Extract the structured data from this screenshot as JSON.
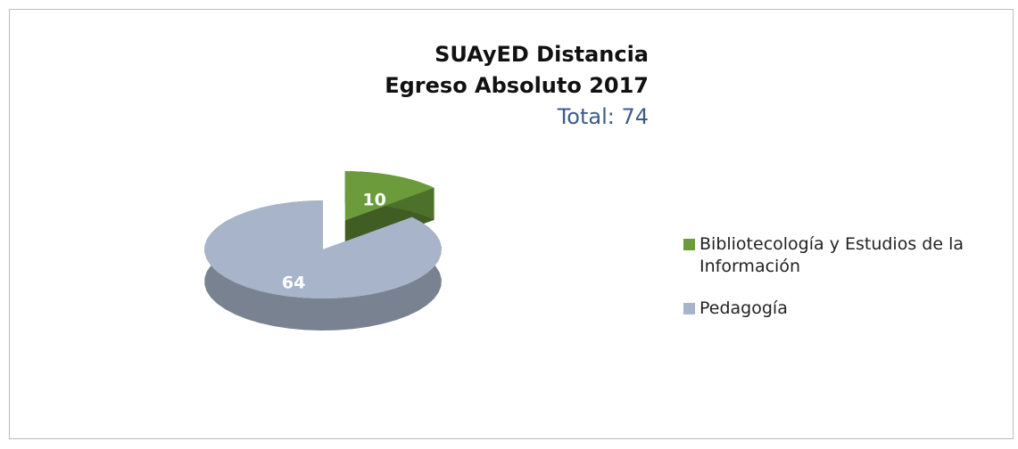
{
  "chart_data": {
    "type": "pie3d",
    "title": [
      "SUAyED Distancia",
      "Egreso Absoluto 2017"
    ],
    "subtitle": "Total: 74",
    "categories": [
      "Bibliotecología y Estudios de la Información",
      "Pedagogía"
    ],
    "values": [
      10,
      64
    ],
    "colors": [
      "#6b9b3a",
      "#a7b4c9"
    ],
    "explode": [
      true,
      false
    ],
    "legend": "right"
  }
}
